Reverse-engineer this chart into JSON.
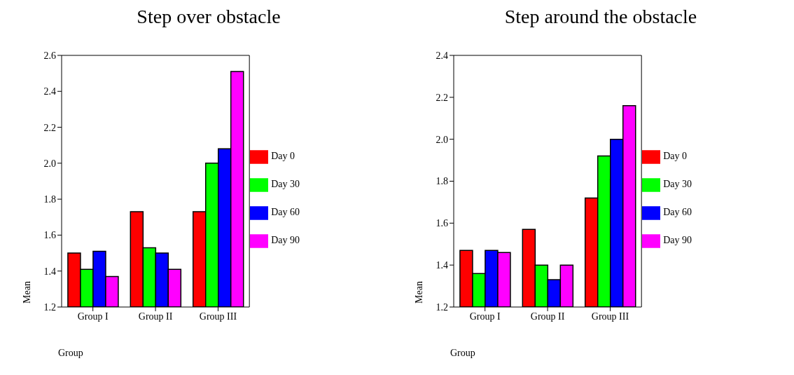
{
  "chart_data": [
    {
      "type": "bar",
      "title": "Step over obstacle",
      "xlabel": "Group",
      "ylabel": "Mean",
      "categories": [
        "Group I",
        "Group II",
        "Group III"
      ],
      "series": [
        {
          "name": "Day 0",
          "color": "#ff0000",
          "values": [
            1.5,
            1.73,
            1.73
          ]
        },
        {
          "name": "Day 30",
          "color": "#00ff00",
          "values": [
            1.41,
            1.53,
            2.0
          ]
        },
        {
          "name": "Day 60",
          "color": "#0000ff",
          "values": [
            1.51,
            1.5,
            2.08
          ]
        },
        {
          "name": "Day 90",
          "color": "#ff00ff",
          "values": [
            1.37,
            1.41,
            2.51
          ]
        }
      ],
      "ylim": [
        1.2,
        2.6
      ],
      "yticks": [
        1.2,
        1.4,
        1.6,
        1.8,
        {
          "value": 2.0,
          "label": "2.0"
        },
        2.2,
        2.4,
        2.6
      ],
      "grid": false,
      "legend": "right"
    },
    {
      "type": "bar",
      "title": "Step around the obstacle",
      "xlabel": "Group",
      "ylabel": "Mean",
      "categories": [
        "Group I",
        "Group II",
        "Group III"
      ],
      "series": [
        {
          "name": "Day 0",
          "color": "#ff0000",
          "values": [
            1.47,
            1.57,
            1.72
          ]
        },
        {
          "name": "Day 30",
          "color": "#00ff00",
          "values": [
            1.36,
            1.4,
            1.92
          ]
        },
        {
          "name": "Day 60",
          "color": "#0000ff",
          "values": [
            1.47,
            1.33,
            2.0
          ]
        },
        {
          "name": "Day 90",
          "color": "#ff00ff",
          "values": [
            1.46,
            1.4,
            2.16
          ]
        }
      ],
      "ylim": [
        1.2,
        2.4
      ],
      "yticks": [
        1.2,
        1.4,
        1.6,
        1.8,
        {
          "value": 2.0,
          "label": "2.0"
        },
        2.2,
        2.4
      ],
      "grid": false,
      "legend": "right"
    }
  ]
}
